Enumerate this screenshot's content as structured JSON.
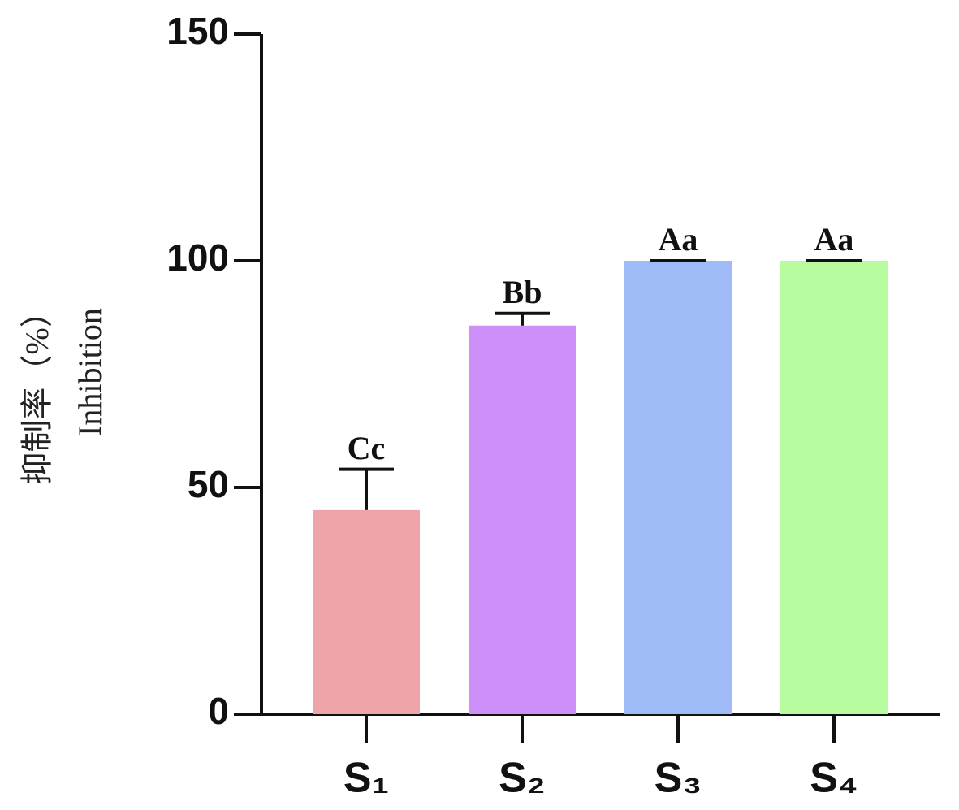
{
  "chart_data": {
    "type": "bar",
    "y_label": [
      "抑制率（%）",
      "Inhibition"
    ],
    "categories": [
      "S₁",
      "S₂",
      "S₃",
      "S₄"
    ],
    "values": [
      45,
      85.7,
      100,
      100
    ],
    "errors": [
      9,
      2.7,
      0,
      0
    ],
    "letters": [
      "Cc",
      "Bb",
      "Aa",
      "Aa"
    ],
    "colors": [
      "#eea4a8",
      "#cf8ff8",
      "#9fbbf7",
      "#b7fda0"
    ],
    "ylim": [
      0,
      150
    ],
    "yticks": [
      0,
      50,
      100,
      150
    ],
    "grid": false
  }
}
